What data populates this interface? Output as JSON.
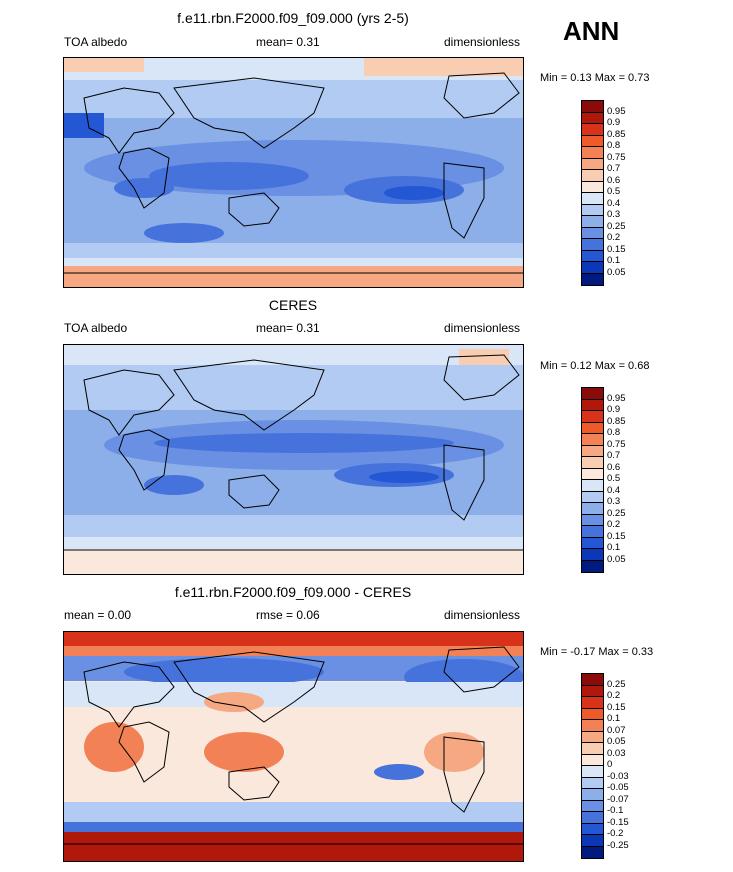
{
  "season": "ANN",
  "panels": [
    {
      "title": "f.e11.rbn.F2000.f09_f09.000 (yrs 2-5)",
      "left": "TOA albedo",
      "center": "mean=  0.31",
      "right": "dimensionless",
      "minmax": "Min =  0.13 Max =  0.73",
      "colorbar": {
        "labels": [
          "0.95",
          "0.9",
          "0.85",
          "0.8",
          "0.75",
          "0.7",
          "0.6",
          "0.5",
          "0.4",
          "0.3",
          "0.25",
          "0.2",
          "0.15",
          "0.1",
          "0.05"
        ],
        "colors": [
          "#8b0a0a",
          "#b0180c",
          "#d8321a",
          "#ee5a2a",
          "#f38156",
          "#f5a882",
          "#f8cdb2",
          "#fbe8dc",
          "#d8e6f7",
          "#b2cbf2",
          "#8caee9",
          "#6990e3",
          "#4672dc",
          "#2457d3",
          "#0c38b8",
          "#011a80"
        ]
      }
    },
    {
      "title": "CERES",
      "left": "TOA albedo",
      "center": "mean=  0.31",
      "right": "dimensionless",
      "minmax": "Min =  0.12 Max =  0.68",
      "colorbar": {
        "labels": [
          "0.95",
          "0.9",
          "0.85",
          "0.8",
          "0.75",
          "0.7",
          "0.6",
          "0.5",
          "0.4",
          "0.3",
          "0.25",
          "0.2",
          "0.15",
          "0.1",
          "0.05"
        ],
        "colors": [
          "#8b0a0a",
          "#b0180c",
          "#d8321a",
          "#ee5a2a",
          "#f38156",
          "#f5a882",
          "#f8cdb2",
          "#fbe8dc",
          "#d8e6f7",
          "#b2cbf2",
          "#8caee9",
          "#6990e3",
          "#4672dc",
          "#2457d3",
          "#0c38b8",
          "#011a80"
        ]
      }
    },
    {
      "title": "f.e11.rbn.F2000.f09_f09.000 - CERES",
      "left": "mean =  0.00",
      "center": "rmse =  0.06",
      "right": "dimensionless",
      "minmax": "Min = -0.17 Max =  0.33",
      "colorbar": {
        "labels": [
          "0.25",
          "0.2",
          "0.15",
          "0.1",
          "0.07",
          "0.05",
          "0.03",
          "0",
          "-0.03",
          "-0.05",
          "-0.07",
          "-0.1",
          "-0.15",
          "-0.2",
          "-0.25"
        ],
        "colors": [
          "#8b0a0a",
          "#b0180c",
          "#d8321a",
          "#ee5a2a",
          "#f38156",
          "#f5a882",
          "#f8cdb2",
          "#fbe8dc",
          "#d8e6f7",
          "#b2cbf2",
          "#8caee9",
          "#6990e3",
          "#4672dc",
          "#2457d3",
          "#0c38b8",
          "#011a80"
        ]
      }
    }
  ]
}
